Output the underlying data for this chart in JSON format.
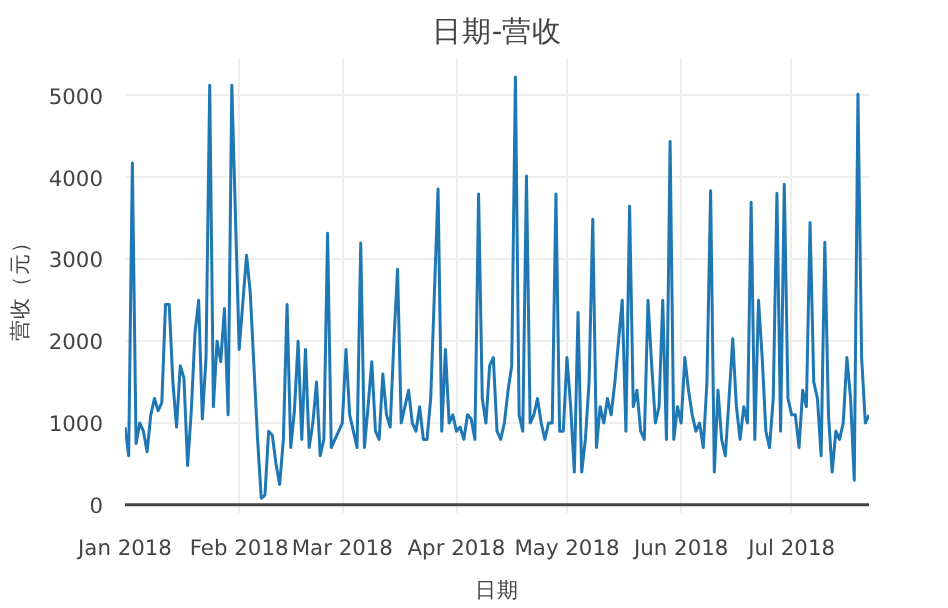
{
  "chart_data": {
    "type": "line",
    "title": "日期-营收",
    "xlabel": "日期",
    "ylabel": "营收（元）",
    "x": [
      "2018-01-01",
      "2018-01-02",
      "2018-01-03",
      "2018-01-04",
      "2018-01-05",
      "2018-01-06",
      "2018-01-07",
      "2018-01-08",
      "2018-01-09",
      "2018-01-10",
      "2018-01-11",
      "2018-01-12",
      "2018-01-13",
      "2018-01-14",
      "2018-01-15",
      "2018-01-16",
      "2018-01-17",
      "2018-01-18",
      "2018-01-19",
      "2018-01-20",
      "2018-01-21",
      "2018-01-22",
      "2018-01-23",
      "2018-01-24",
      "2018-01-25",
      "2018-01-26",
      "2018-01-27",
      "2018-01-28",
      "2018-01-29",
      "2018-01-30",
      "2018-02-01",
      "2018-02-03",
      "2018-02-04",
      "2018-02-05",
      "2018-02-06",
      "2018-02-07",
      "2018-02-08",
      "2018-02-09",
      "2018-02-10",
      "2018-02-11",
      "2018-02-12",
      "2018-02-13",
      "2018-02-14",
      "2018-02-15",
      "2018-02-16",
      "2018-02-17",
      "2018-02-18",
      "2018-02-19",
      "2018-02-20",
      "2018-02-21",
      "2018-02-22",
      "2018-02-23",
      "2018-02-24",
      "2018-02-25",
      "2018-02-26",
      "2018-03-01",
      "2018-03-02",
      "2018-03-03",
      "2018-03-04",
      "2018-03-05",
      "2018-03-06",
      "2018-03-07",
      "2018-03-08",
      "2018-03-09",
      "2018-03-10",
      "2018-03-11",
      "2018-03-12",
      "2018-03-13",
      "2018-03-14",
      "2018-03-15",
      "2018-03-16",
      "2018-03-17",
      "2018-03-18",
      "2018-03-19",
      "2018-03-20",
      "2018-03-21",
      "2018-03-22",
      "2018-03-23",
      "2018-03-24",
      "2018-03-25",
      "2018-03-27",
      "2018-03-28",
      "2018-03-29",
      "2018-03-30",
      "2018-03-31",
      "2018-04-01",
      "2018-04-02",
      "2018-04-03",
      "2018-04-04",
      "2018-04-05",
      "2018-04-06",
      "2018-04-07",
      "2018-04-08",
      "2018-04-09",
      "2018-04-10",
      "2018-04-11",
      "2018-04-12",
      "2018-04-13",
      "2018-04-14",
      "2018-04-15",
      "2018-04-16",
      "2018-04-17",
      "2018-04-18",
      "2018-04-19",
      "2018-04-20",
      "2018-04-21",
      "2018-04-22",
      "2018-04-23",
      "2018-04-24",
      "2018-04-25",
      "2018-04-26",
      "2018-04-27",
      "2018-04-28",
      "2018-04-29",
      "2018-04-30",
      "2018-05-01",
      "2018-05-02",
      "2018-05-03",
      "2018-05-04",
      "2018-05-05",
      "2018-05-06",
      "2018-05-07",
      "2018-05-08",
      "2018-05-09",
      "2018-05-10",
      "2018-05-11",
      "2018-05-12",
      "2018-05-13",
      "2018-05-14",
      "2018-05-15",
      "2018-05-16",
      "2018-05-17",
      "2018-05-18",
      "2018-05-19",
      "2018-05-20",
      "2018-05-21",
      "2018-05-22",
      "2018-05-23",
      "2018-05-24",
      "2018-05-25",
      "2018-05-26",
      "2018-05-27",
      "2018-05-28",
      "2018-05-29",
      "2018-05-30",
      "2018-05-31",
      "2018-06-01",
      "2018-06-02",
      "2018-06-03",
      "2018-06-04",
      "2018-06-05",
      "2018-06-06",
      "2018-06-07",
      "2018-06-08",
      "2018-06-09",
      "2018-06-10",
      "2018-06-11",
      "2018-06-12",
      "2018-06-13",
      "2018-06-14",
      "2018-06-15",
      "2018-06-16",
      "2018-06-17",
      "2018-06-18",
      "2018-06-19",
      "2018-06-20",
      "2018-06-21",
      "2018-06-22",
      "2018-06-23",
      "2018-06-24",
      "2018-06-25",
      "2018-06-26",
      "2018-06-27",
      "2018-06-28",
      "2018-06-29",
      "2018-06-30",
      "2018-07-01",
      "2018-07-02",
      "2018-07-03",
      "2018-07-04",
      "2018-07-05",
      "2018-07-06",
      "2018-07-07",
      "2018-07-08",
      "2018-07-09",
      "2018-07-10",
      "2018-07-11",
      "2018-07-12",
      "2018-07-13",
      "2018-07-14",
      "2018-07-15",
      "2018-07-16",
      "2018-07-17",
      "2018-07-18",
      "2018-07-19",
      "2018-07-20",
      "2018-07-21",
      "2018-07-22"
    ],
    "series": [
      {
        "color": "#1f77b4",
        "values": [
          950,
          600,
          4180,
          750,
          1000,
          900,
          650,
          1100,
          1300,
          1150,
          1250,
          2450,
          2450,
          1500,
          950,
          1700,
          1550,
          480,
          1150,
          2100,
          2500,
          1050,
          1800,
          5130,
          1200,
          2000,
          1750,
          2400,
          1100,
          5130,
          1900,
          3050,
          2600,
          1700,
          800,
          80,
          120,
          900,
          850,
          500,
          250,
          800,
          2450,
          700,
          1150,
          2000,
          800,
          1900,
          700,
          1000,
          1500,
          600,
          800,
          3320,
          700,
          1000,
          1900,
          1100,
          900,
          700,
          3200,
          700,
          1200,
          1750,
          900,
          800,
          1600,
          1100,
          950,
          2000,
          2880,
          1000,
          1200,
          1400,
          1000,
          900,
          1200,
          800,
          800,
          1300,
          3860,
          900,
          1900,
          1000,
          1100,
          900,
          950,
          800,
          1100,
          1050,
          800,
          3800,
          1300,
          1000,
          1700,
          1800,
          900,
          800,
          1000,
          1400,
          1700,
          5230,
          1100,
          900,
          4020,
          1000,
          1100,
          1300,
          1000,
          800,
          1000,
          1000,
          3800,
          900,
          900,
          1800,
          1200,
          400,
          2350,
          400,
          800,
          1500,
          3490,
          700,
          1200,
          1000,
          1300,
          1100,
          1500,
          2000,
          2500,
          900,
          3650,
          1200,
          1400,
          900,
          800,
          2500,
          1700,
          1000,
          1200,
          2500,
          800,
          4440,
          800,
          1200,
          1000,
          1800,
          1400,
          1100,
          900,
          1000,
          700,
          1500,
          3840,
          400,
          1400,
          800,
          600,
          1300,
          2030,
          1200,
          800,
          1200,
          1000,
          3700,
          800,
          2500,
          1800,
          900,
          700,
          1300,
          3810,
          900,
          3920,
          1300,
          1100,
          1100,
          700,
          1400,
          1200,
          3450,
          1500,
          1300,
          600,
          3210,
          1100,
          400,
          900,
          800,
          1000,
          1800,
          1300,
          300,
          5020,
          1800,
          1000,
          1100
        ]
      }
    ],
    "xlim": [
      "2018-01-01",
      "2018-07-22"
    ],
    "xticks": [
      {
        "value": "2018-01-01",
        "label": "Jan 2018"
      },
      {
        "value": "2018-02-01",
        "label": "Feb 2018"
      },
      {
        "value": "2018-03-01",
        "label": "Mar 2018"
      },
      {
        "value": "2018-04-01",
        "label": "Apr 2018"
      },
      {
        "value": "2018-05-01",
        "label": "May 2018"
      },
      {
        "value": "2018-06-01",
        "label": "Jun 2018"
      },
      {
        "value": "2018-07-01",
        "label": "Jul 2018"
      }
    ],
    "ylim": [
      -100,
      5450
    ],
    "yticks": [
      0,
      1000,
      2000,
      3000,
      4000,
      5000
    ],
    "grid": true,
    "line_style": "solid"
  }
}
